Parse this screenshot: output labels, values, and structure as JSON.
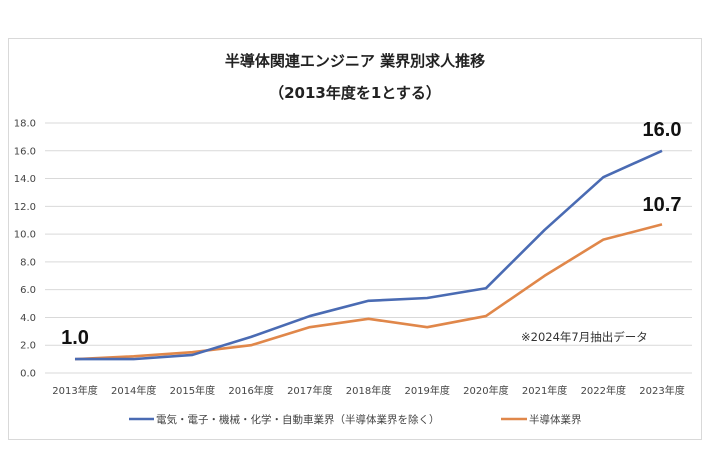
{
  "chart_data": {
    "type": "line",
    "title": "半導体関連エンジニア 業界別求人推移",
    "subtitle": "（2013年度を1とする）",
    "categories": [
      "2013年度",
      "2014年度",
      "2015年度",
      "2016年度",
      "2017年度",
      "2018年度",
      "2019年度",
      "2020年度",
      "2021年度",
      "2022年度",
      "2023年度"
    ],
    "series": [
      {
        "name": "電気・電子・機械・化学・自動車業界（半導体業界を除く）",
        "color": "#4a6bb3",
        "values": [
          1.0,
          1.0,
          1.3,
          2.6,
          4.1,
          5.2,
          5.4,
          6.1,
          10.3,
          14.1,
          16.0
        ]
      },
      {
        "name": "半導体業界",
        "color": "#e0874a",
        "values": [
          1.0,
          1.2,
          1.5,
          2.0,
          3.3,
          3.9,
          3.3,
          4.1,
          7.0,
          9.6,
          10.7
        ]
      }
    ],
    "yticks": [
      "0.0",
      "2.0",
      "4.0",
      "6.0",
      "8.0",
      "10.0",
      "12.0",
      "14.0",
      "16.0",
      "18.0"
    ],
    "ylim": [
      0,
      18
    ],
    "annotations": {
      "start": "1.0",
      "end_blue": "16.0",
      "end_orange": "10.7",
      "note": "※2024年7月抽出データ"
    },
    "grid": true,
    "legend": "bottom"
  }
}
